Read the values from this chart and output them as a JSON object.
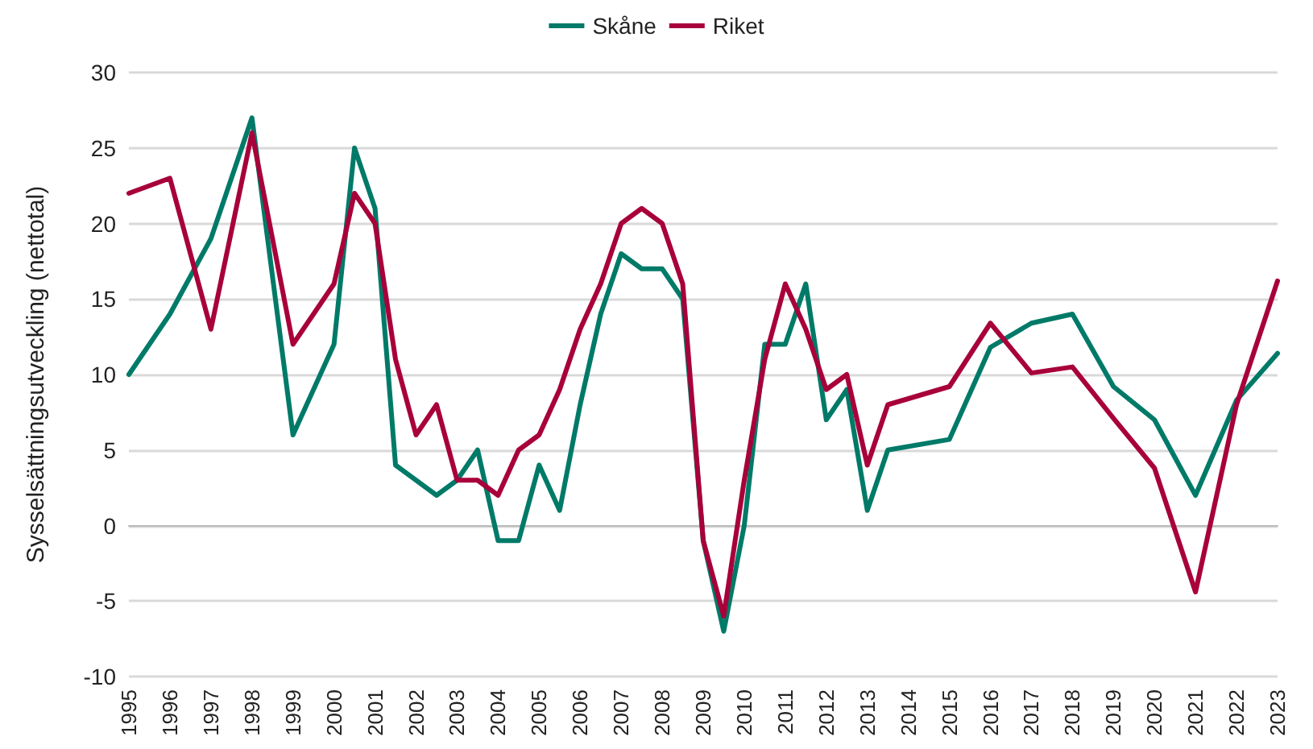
{
  "chart_data": {
    "type": "line",
    "ylabel": "Sysselsättningsutveckling (nettotal)",
    "legend": "top",
    "grid": "y",
    "marker": "none",
    "line_style": "solid",
    "xlim": [
      1995,
      2023
    ],
    "xticks": [
      1995,
      1996,
      1997,
      1998,
      1999,
      2000,
      2001,
      2002,
      2003,
      2004,
      2005,
      2006,
      2007,
      2008,
      2009,
      2010,
      2011,
      2012,
      2013,
      2014,
      2015,
      2016,
      2017,
      2018,
      2019,
      2020,
      2021,
      2022,
      2023
    ],
    "ylim": [
      -10,
      30
    ],
    "yticks": [
      -10,
      -5,
      0,
      5,
      10,
      15,
      20,
      25,
      30
    ],
    "series": [
      {
        "name": "Skåne",
        "color": "#007a68",
        "x": [
          1995,
          1996,
          1997,
          1998,
          1999,
          2000,
          2000.5,
          2001,
          2001.5,
          2002.5,
          2003,
          2003.5,
          2004,
          2004.5,
          2005,
          2005.5,
          2006,
          2006.5,
          2007,
          2007.5,
          2008,
          2008.5,
          2009,
          2009.5,
          2010,
          2010.5,
          2011,
          2011.5,
          2012,
          2012.5,
          2013,
          2013.5,
          2015,
          2016,
          2017,
          2018,
          2019,
          2020,
          2021,
          2022,
          2023
        ],
        "values": [
          10,
          14,
          19,
          27,
          6,
          12,
          25,
          21,
          4,
          2,
          3,
          5,
          -1,
          -1,
          4,
          1,
          8,
          14,
          18,
          17,
          17,
          15,
          -1,
          -7,
          0,
          12,
          12,
          16,
          7,
          9,
          1,
          5,
          5.7,
          11.8,
          13.4,
          14,
          9.2,
          7,
          2,
          8.3,
          11.4
        ]
      },
      {
        "name": "Riket",
        "color": "#a8003a",
        "x": [
          1995,
          1996,
          1997,
          1998,
          1999,
          2000,
          2000.5,
          2001,
          2001.5,
          2002,
          2002.5,
          2003,
          2003.5,
          2004,
          2004.5,
          2005,
          2005.5,
          2006,
          2006.5,
          2007,
          2007.5,
          2008,
          2008.5,
          2009,
          2009.5,
          2010,
          2010.5,
          2011,
          2011.5,
          2012,
          2012.5,
          2013,
          2013.5,
          2015,
          2016,
          2017,
          2018,
          2019,
          2020,
          2021,
          2022,
          2023
        ],
        "values": [
          22,
          23,
          13,
          26,
          12,
          16,
          22,
          20,
          11,
          6,
          8,
          3,
          3,
          2,
          5,
          6,
          9,
          13,
          16,
          20,
          21,
          20,
          16,
          -1,
          -6,
          3,
          11,
          16,
          13,
          9,
          10,
          4,
          8,
          9.2,
          13.4,
          10.1,
          10.5,
          7.1,
          3.8,
          -4.4,
          8,
          16.2
        ]
      }
    ]
  }
}
